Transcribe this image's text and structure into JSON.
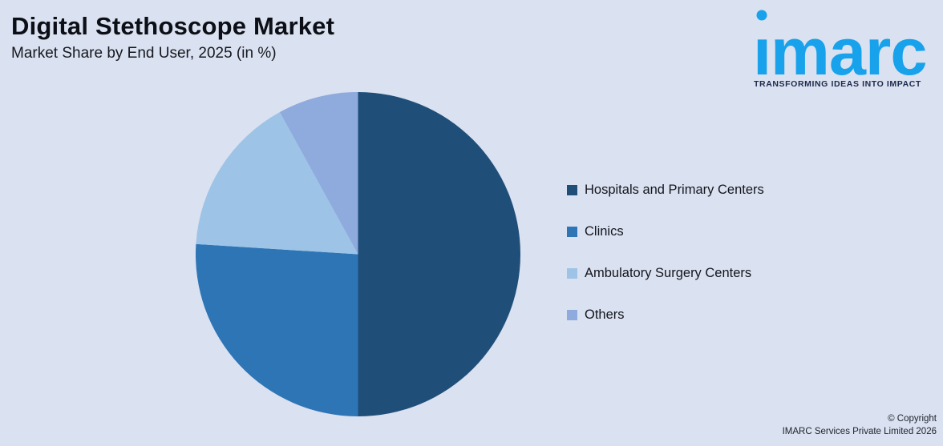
{
  "page": {
    "background": "#DAE1F0"
  },
  "chart_data": {
    "type": "pie",
    "title": "Digital Stethoscope Market",
    "subtitle": "Market Share by End User, 2025 (in %)",
    "unit": "%",
    "categories": [
      "Hospitals and Primary Centers",
      "Clinics",
      "Ambulatory Surgery Centers",
      "Others"
    ],
    "values": [
      50,
      26,
      16,
      8
    ],
    "colors": [
      "#1F4E79",
      "#2E75B6",
      "#9DC3E6",
      "#8FAADC"
    ],
    "start_angle_deg": 0,
    "direction": "clockwise",
    "legend_position": "right",
    "value_labels_shown": false
  },
  "logo": {
    "wordmark": "imarc",
    "tagline": "TRANSFORMING IDEAS INTO IMPACT",
    "wordmark_color": "#18A2EB",
    "tagline_color": "#1C2A4D"
  },
  "footer": {
    "line1": "© Copyright",
    "line2": "IMARC Services Private Limited 2026"
  }
}
